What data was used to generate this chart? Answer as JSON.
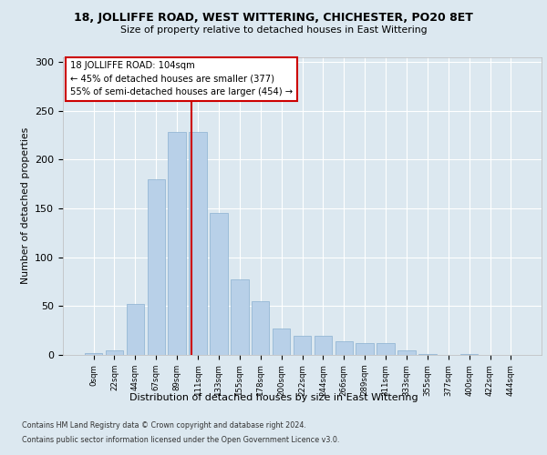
{
  "title1": "18, JOLLIFFE ROAD, WEST WITTERING, CHICHESTER, PO20 8ET",
  "title2": "Size of property relative to detached houses in East Wittering",
  "xlabel": "Distribution of detached houses by size in East Wittering",
  "ylabel": "Number of detached properties",
  "bar_labels": [
    "0sqm",
    "22sqm",
    "44sqm",
    "67sqm",
    "89sqm",
    "111sqm",
    "133sqm",
    "155sqm",
    "178sqm",
    "200sqm",
    "222sqm",
    "244sqm",
    "266sqm",
    "289sqm",
    "311sqm",
    "333sqm",
    "355sqm",
    "377sqm",
    "400sqm",
    "422sqm",
    "444sqm"
  ],
  "bar_values": [
    2,
    5,
    52,
    180,
    228,
    228,
    145,
    77,
    55,
    27,
    20,
    20,
    14,
    12,
    12,
    5,
    1,
    0,
    1,
    0,
    0
  ],
  "bar_color": "#b8d0e8",
  "bar_edge_color": "#8ab0d0",
  "property_label": "18 JOLLIFFE ROAD: 104sqm",
  "annotation_line1": "← 45% of detached houses are smaller (377)",
  "annotation_line2": "55% of semi-detached houses are larger (454) →",
  "vline_color": "#cc0000",
  "vline_x_index": 4.68,
  "ylim": [
    0,
    305
  ],
  "yticks": [
    0,
    50,
    100,
    150,
    200,
    250,
    300
  ],
  "bg_color": "#dce8f0",
  "footer1": "Contains HM Land Registry data © Crown copyright and database right 2024.",
  "footer2": "Contains public sector information licensed under the Open Government Licence v3.0."
}
